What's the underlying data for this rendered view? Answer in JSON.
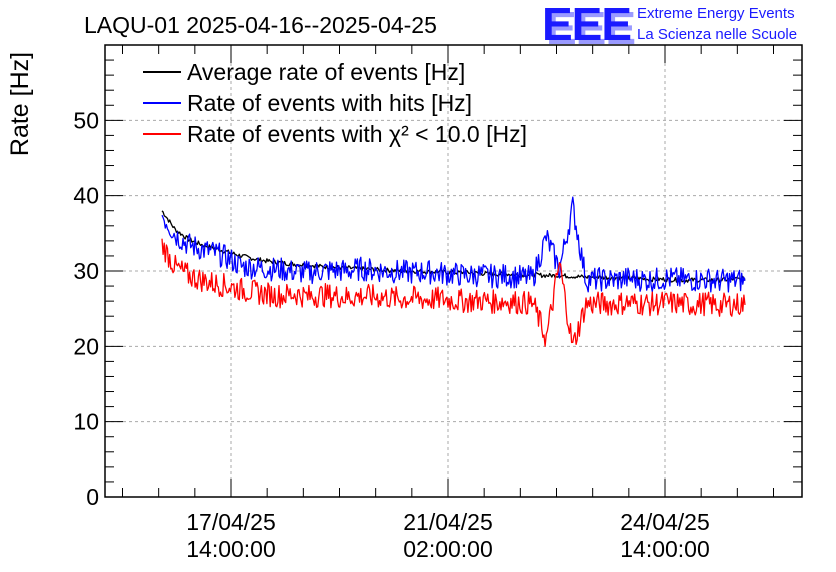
{
  "header": {
    "title": "LAQU-01 2025-04-16--2025-04-25",
    "logo_text": "EEE",
    "brand_line1": "Extreme Energy Events",
    "brand_line2": "La Scienza nelle Scuole",
    "brand_color": "#1a1aff"
  },
  "chart_data": {
    "type": "line",
    "title": "LAQU-01 2025-04-16--2025-04-25",
    "xlabel": "",
    "ylabel": "Rate [Hz]",
    "ylim": [
      0,
      60
    ],
    "yticks": [
      0,
      10,
      20,
      30,
      40,
      50
    ],
    "xticks": [
      {
        "line1": "17/04/25",
        "line2": "14:00:00"
      },
      {
        "line1": "21/04/25",
        "line2": "02:00:00"
      },
      {
        "line1": "24/04/25",
        "line2": "14:00:00"
      }
    ],
    "grid": true,
    "legend_position": "top-left",
    "series": [
      {
        "name": "Average rate of events [Hz]",
        "color": "#000000",
        "values": [
          38.0,
          35.5,
          34.2,
          33.5,
          33.0,
          32.5,
          32.0,
          31.6,
          31.3,
          31.1,
          30.9,
          30.8,
          30.6,
          30.5,
          30.4,
          30.3,
          30.2,
          30.1,
          30.0,
          30.0,
          29.9,
          29.9,
          29.8,
          29.8,
          29.7,
          29.6,
          29.6,
          29.5,
          29.5,
          29.4,
          29.4,
          29.3,
          29.2,
          29.2,
          29.1,
          29.1,
          29.0,
          28.9,
          28.9,
          28.8,
          28.8,
          28.8,
          28.8,
          28.9,
          29.0
        ]
      },
      {
        "name": "Rate of events with hits [Hz]",
        "color": "#0000ff",
        "values": [
          37.5,
          34.8,
          33.5,
          32.9,
          32.4,
          31.7,
          30.6,
          30.5,
          30.3,
          30.2,
          29.9,
          29.8,
          30.0,
          30.1,
          30.0,
          30.3,
          30.1,
          30.0,
          29.9,
          29.8,
          29.9,
          29.7,
          29.6,
          29.4,
          29.5,
          29.3,
          29.4,
          29.2,
          29.1,
          34.5,
          30.2,
          38.5,
          28.8,
          28.9,
          28.8,
          29.0,
          28.9,
          28.8,
          29.0,
          28.9,
          28.8,
          28.9,
          28.7,
          28.8,
          28.7
        ]
      },
      {
        "name": "Rate of events with χ² < 10.0 [Hz]",
        "color": "#ff0000",
        "values": [
          33.5,
          30.5,
          29.4,
          28.8,
          28.3,
          28.0,
          27.5,
          27.2,
          26.9,
          26.7,
          27.0,
          26.6,
          26.8,
          26.7,
          26.5,
          26.7,
          26.6,
          26.5,
          26.3,
          26.4,
          26.2,
          26.3,
          26.1,
          26.0,
          26.1,
          25.9,
          26.0,
          25.8,
          25.7,
          21.0,
          31.0,
          20.0,
          25.6,
          25.7,
          25.6,
          25.8,
          25.7,
          25.6,
          25.8,
          25.7,
          25.5,
          25.7,
          25.4,
          25.6,
          25.5
        ]
      }
    ]
  }
}
